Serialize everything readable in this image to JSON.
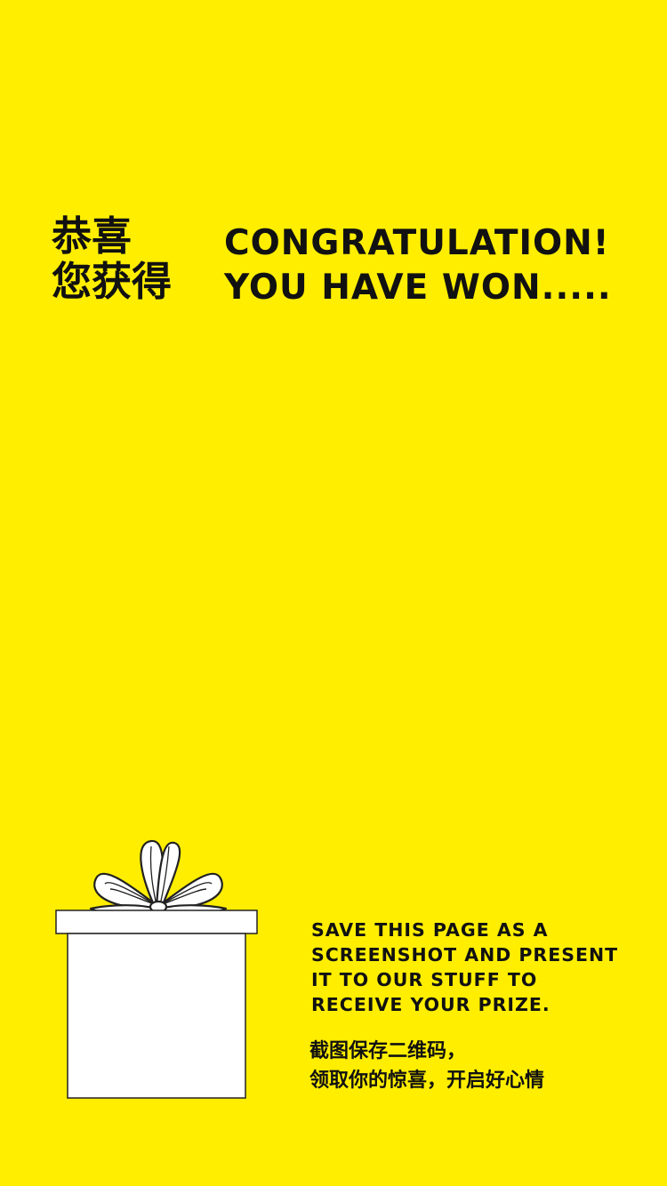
{
  "header": {
    "cn_line1": "恭喜",
    "cn_line2": "您获得",
    "en_line1": "CONGRATULATION!",
    "en_line2": "YOU HAVE WON....."
  },
  "instructions": {
    "en_line1": "SAVE THIS PAGE AS A",
    "en_line2": "SCREENSHOT AND PRESENT",
    "en_line3": "IT TO OUR STUFF TO",
    "en_line4": "RECEIVE YOUR PRIZE.",
    "cn_line1": "截图保存二维码，",
    "cn_line2": "领取你的惊喜，开启好心情"
  },
  "colors": {
    "background": "#FFEE00",
    "text": "#111111",
    "gift_fill": "#FFFFFF"
  },
  "icons": {
    "gift": "gift-box-icon",
    "bow": "ribbon-bow-icon"
  }
}
